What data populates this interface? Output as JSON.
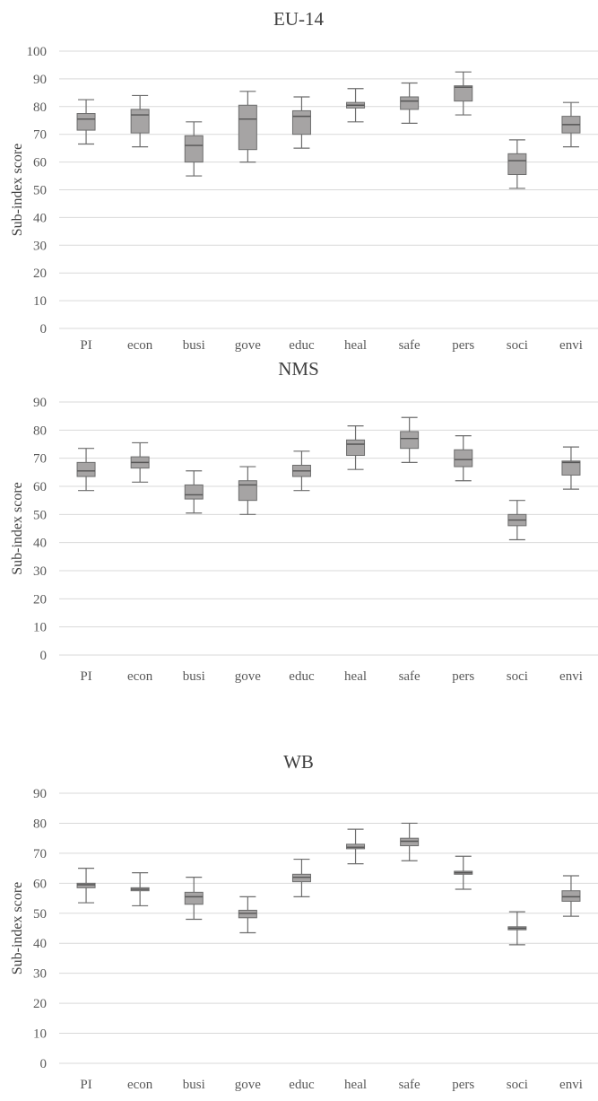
{
  "chart_data": [
    {
      "type": "boxplot",
      "title": "EU-14",
      "ylabel": "Sub-index score",
      "ylim": [
        0,
        100
      ],
      "yticks": [
        0,
        10,
        20,
        30,
        40,
        50,
        60,
        70,
        80,
        90,
        100
      ],
      "categories": [
        "PI",
        "econ",
        "busi",
        "gove",
        "educ",
        "heal",
        "safe",
        "pers",
        "soci",
        "envi"
      ],
      "boxes": [
        {
          "min": 66.5,
          "q1": 71.5,
          "median": 75.5,
          "q3": 77.5,
          "max": 82.5
        },
        {
          "min": 65.5,
          "q1": 70.5,
          "median": 77.0,
          "q3": 79.0,
          "max": 84.0
        },
        {
          "min": 55.0,
          "q1": 60.0,
          "median": 66.0,
          "q3": 69.5,
          "max": 74.5
        },
        {
          "min": 60.0,
          "q1": 64.5,
          "median": 75.5,
          "q3": 80.5,
          "max": 85.5
        },
        {
          "min": 65.0,
          "q1": 70.0,
          "median": 76.5,
          "q3": 78.5,
          "max": 83.5
        },
        {
          "min": 74.5,
          "q1": 79.5,
          "median": 80.5,
          "q3": 81.5,
          "max": 86.5
        },
        {
          "min": 74.0,
          "q1": 79.0,
          "median": 82.0,
          "q3": 83.5,
          "max": 88.5
        },
        {
          "min": 77.0,
          "q1": 82.0,
          "median": 87.0,
          "q3": 87.5,
          "max": 92.5
        },
        {
          "min": 50.5,
          "q1": 55.5,
          "median": 60.5,
          "q3": 63.0,
          "max": 68.0
        },
        {
          "min": 65.5,
          "q1": 70.5,
          "median": 73.5,
          "q3": 76.5,
          "max": 81.5
        }
      ]
    },
    {
      "type": "boxplot",
      "title": "NMS",
      "ylabel": "Sub-index score",
      "ylim": [
        0,
        90
      ],
      "yticks": [
        0,
        10,
        20,
        30,
        40,
        50,
        60,
        70,
        80,
        90
      ],
      "categories": [
        "PI",
        "econ",
        "busi",
        "gove",
        "educ",
        "heal",
        "safe",
        "pers",
        "soci",
        "envi"
      ],
      "boxes": [
        {
          "min": 58.5,
          "q1": 63.5,
          "median": 65.5,
          "q3": 68.5,
          "max": 73.5
        },
        {
          "min": 61.5,
          "q1": 66.5,
          "median": 68.5,
          "q3": 70.5,
          "max": 75.5
        },
        {
          "min": 50.5,
          "q1": 55.5,
          "median": 57.0,
          "q3": 60.5,
          "max": 65.5
        },
        {
          "min": 50.0,
          "q1": 55.0,
          "median": 60.5,
          "q3": 62.0,
          "max": 67.0
        },
        {
          "min": 58.5,
          "q1": 63.5,
          "median": 65.5,
          "q3": 67.5,
          "max": 72.5
        },
        {
          "min": 66.0,
          "q1": 71.0,
          "median": 75.0,
          "q3": 76.5,
          "max": 81.5
        },
        {
          "min": 68.5,
          "q1": 73.5,
          "median": 77.0,
          "q3": 79.5,
          "max": 84.5
        },
        {
          "min": 62.0,
          "q1": 67.0,
          "median": 69.5,
          "q3": 73.0,
          "max": 78.0
        },
        {
          "min": 41.0,
          "q1": 46.0,
          "median": 48.0,
          "q3": 50.0,
          "max": 55.0
        },
        {
          "min": 59.0,
          "q1": 64.0,
          "median": 68.5,
          "q3": 69.0,
          "max": 74.0
        }
      ]
    },
    {
      "type": "boxplot",
      "title": "WB",
      "ylabel": "Sub-index score",
      "ylim": [
        0,
        90
      ],
      "yticks": [
        0,
        10,
        20,
        30,
        40,
        50,
        60,
        70,
        80,
        90
      ],
      "categories": [
        "PI",
        "econ",
        "busi",
        "gove",
        "educ",
        "heal",
        "safe",
        "pers",
        "soci",
        "envi"
      ],
      "boxes": [
        {
          "min": 53.5,
          "q1": 58.5,
          "median": 59.5,
          "q3": 60.0,
          "max": 65.0
        },
        {
          "min": 52.5,
          "q1": 57.5,
          "median": 58.0,
          "q3": 58.5,
          "max": 63.5
        },
        {
          "min": 48.0,
          "q1": 53.0,
          "median": 55.5,
          "q3": 57.0,
          "max": 62.0
        },
        {
          "min": 43.5,
          "q1": 48.5,
          "median": 50.0,
          "q3": 51.0,
          "max": 55.5
        },
        {
          "min": 55.5,
          "q1": 60.5,
          "median": 62.0,
          "q3": 63.0,
          "max": 68.0
        },
        {
          "min": 66.5,
          "q1": 71.5,
          "median": 72.0,
          "q3": 73.0,
          "max": 78.0
        },
        {
          "min": 67.5,
          "q1": 72.5,
          "median": 74.0,
          "q3": 75.0,
          "max": 80.0
        },
        {
          "min": 58.0,
          "q1": 63.0,
          "median": 63.5,
          "q3": 64.0,
          "max": 69.0
        },
        {
          "min": 39.5,
          "q1": 44.5,
          "median": 45.0,
          "q3": 45.5,
          "max": 50.5
        },
        {
          "min": 49.0,
          "q1": 54.0,
          "median": 55.5,
          "q3": 57.5,
          "max": 62.5
        }
      ]
    }
  ]
}
